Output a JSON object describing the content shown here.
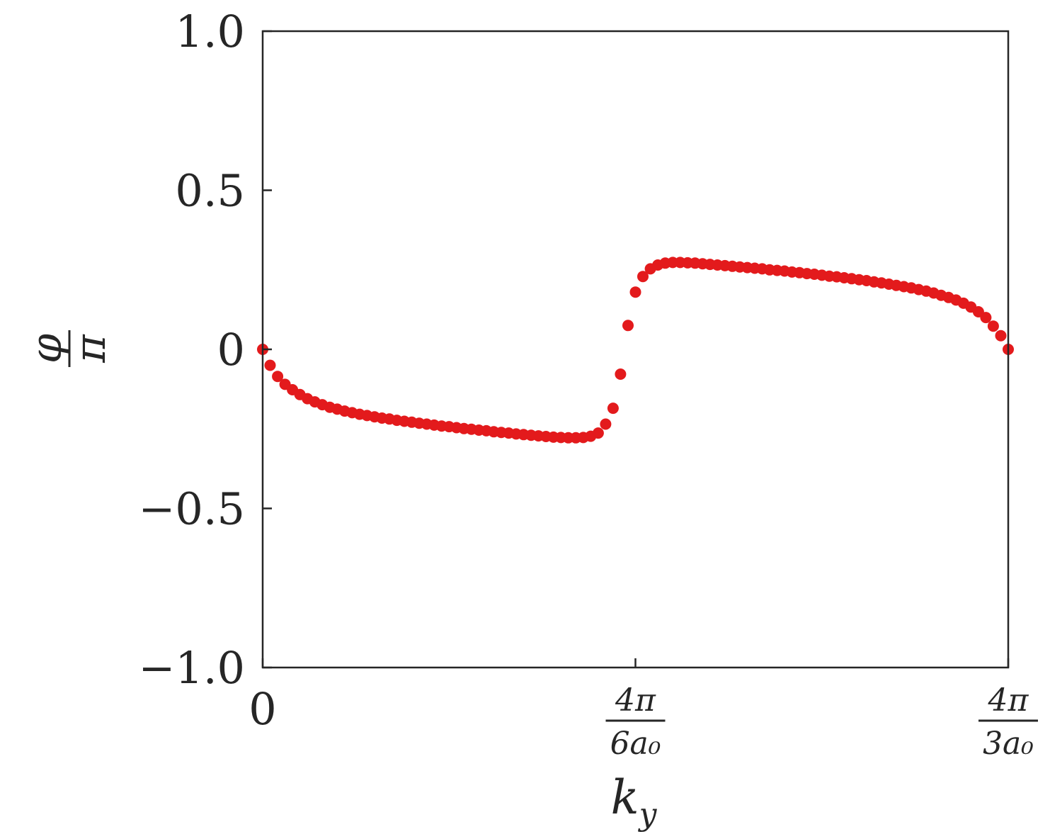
{
  "chart_data": {
    "type": "scatter",
    "xlabel": "k_y",
    "ylabel_num": "φ",
    "ylabel_den": "π",
    "xlim": [
      0,
      2
    ],
    "ylim": [
      -1.0,
      1.0
    ],
    "grid": false,
    "legend": "none",
    "marker_color": "#e31a1c",
    "axis_color": "#262626",
    "yticks": [
      {
        "value": 1.0,
        "label": "1.0"
      },
      {
        "value": 0.5,
        "label": "0.5"
      },
      {
        "value": 0.0,
        "label": "0"
      },
      {
        "value": -0.5,
        "label": "−0.5"
      },
      {
        "value": -1.0,
        "label": "−1.0"
      }
    ],
    "xticks": [
      {
        "value": 0,
        "label": "0"
      },
      {
        "value": 1,
        "num": "4π",
        "den": "6a₀"
      },
      {
        "value": 2,
        "num": "4π",
        "den": "3a₀"
      }
    ],
    "series": [
      {
        "x": [
          0.0,
          0.02,
          0.04,
          0.06,
          0.08,
          0.1,
          0.12,
          0.14,
          0.16,
          0.18,
          0.2,
          0.22,
          0.24,
          0.26,
          0.28,
          0.3,
          0.32,
          0.34,
          0.36,
          0.38,
          0.4,
          0.42,
          0.44,
          0.46,
          0.48,
          0.5,
          0.52,
          0.54,
          0.56,
          0.58,
          0.6,
          0.62,
          0.64,
          0.66,
          0.68,
          0.7,
          0.72,
          0.74,
          0.76,
          0.78,
          0.8,
          0.82,
          0.84,
          0.86,
          0.88,
          0.9,
          0.92,
          0.94,
          0.96,
          0.98,
          1.0,
          1.02,
          1.04,
          1.06,
          1.08,
          1.1,
          1.12,
          1.14,
          1.16,
          1.18,
          1.2,
          1.22,
          1.24,
          1.26,
          1.28,
          1.3,
          1.32,
          1.34,
          1.36,
          1.38,
          1.4,
          1.42,
          1.44,
          1.46,
          1.48,
          1.5,
          1.52,
          1.54,
          1.56,
          1.58,
          1.6,
          1.62,
          1.64,
          1.66,
          1.68,
          1.7,
          1.72,
          1.74,
          1.76,
          1.78,
          1.8,
          1.82,
          1.84,
          1.86,
          1.88,
          1.9,
          1.92,
          1.94,
          1.96,
          1.98,
          2.0
        ],
        "y": [
          0.0,
          -0.05,
          -0.085,
          -0.11,
          -0.127,
          -0.142,
          -0.155,
          -0.165,
          -0.174,
          -0.182,
          -0.188,
          -0.194,
          -0.199,
          -0.204,
          -0.208,
          -0.212,
          -0.216,
          -0.219,
          -0.223,
          -0.226,
          -0.229,
          -0.232,
          -0.235,
          -0.238,
          -0.241,
          -0.243,
          -0.246,
          -0.249,
          -0.251,
          -0.254,
          -0.256,
          -0.259,
          -0.261,
          -0.263,
          -0.266,
          -0.268,
          -0.27,
          -0.272,
          -0.274,
          -0.276,
          -0.277,
          -0.278,
          -0.278,
          -0.277,
          -0.273,
          -0.263,
          -0.235,
          -0.185,
          -0.078,
          0.075,
          0.18,
          0.229,
          0.253,
          0.265,
          0.271,
          0.273,
          0.273,
          0.272,
          0.271,
          0.269,
          0.267,
          0.265,
          0.263,
          0.261,
          0.259,
          0.257,
          0.255,
          0.253,
          0.25,
          0.248,
          0.246,
          0.243,
          0.241,
          0.238,
          0.236,
          0.233,
          0.23,
          0.228,
          0.225,
          0.222,
          0.219,
          0.216,
          0.212,
          0.209,
          0.205,
          0.201,
          0.197,
          0.193,
          0.188,
          0.183,
          0.177,
          0.17,
          0.163,
          0.155,
          0.145,
          0.133,
          0.118,
          0.1,
          0.073,
          0.043,
          0.0
        ]
      }
    ]
  }
}
